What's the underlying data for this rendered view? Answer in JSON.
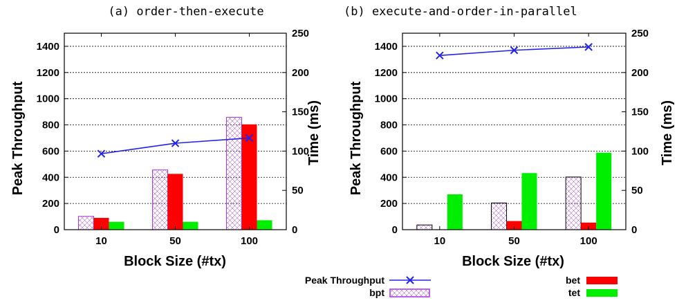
{
  "chart_data": [
    {
      "type": "bar",
      "title": "(a) order-then-execute",
      "xlabel": "Block Size (#tx)",
      "ylabel": "Peak Throughput",
      "y2label": "Time (ms)",
      "categories": [
        "10",
        "50",
        "100"
      ],
      "ylim": [
        0,
        1500
      ],
      "yticks": [
        "0",
        "200",
        "400",
        "600",
        "800",
        "1000",
        "1200",
        "1400"
      ],
      "y2lim": [
        0,
        250
      ],
      "y2ticks": [
        "0",
        "50",
        "100",
        "150",
        "200",
        "250"
      ],
      "grid": true,
      "series": [
        {
          "name": "bpt",
          "kind": "bar",
          "axis": "right",
          "values": [
            17,
            76,
            143
          ]
        },
        {
          "name": "bet",
          "kind": "bar",
          "axis": "right",
          "values": [
            15,
            71,
            134
          ]
        },
        {
          "name": "tet",
          "kind": "bar",
          "axis": "right",
          "values": [
            10,
            10,
            12
          ]
        },
        {
          "name": "Peak Throughput",
          "kind": "line",
          "axis": "left",
          "values": [
            580,
            660,
            700
          ]
        }
      ]
    },
    {
      "type": "bar",
      "title": "(b) execute-and-order-in-parallel",
      "xlabel": "Block Size (#tx)",
      "ylabel": "Peak Throughput",
      "y2label": "Time (ms)",
      "categories": [
        "10",
        "50",
        "100"
      ],
      "ylim": [
        0,
        1500
      ],
      "yticks": [
        "0",
        "200",
        "400",
        "600",
        "800",
        "1000",
        "1200",
        "1400"
      ],
      "y2lim": [
        0,
        250
      ],
      "y2ticks": [
        "0",
        "50",
        "100",
        "150",
        "200",
        "250"
      ],
      "grid": true,
      "series": [
        {
          "name": "bpt",
          "kind": "bar",
          "axis": "right",
          "values": [
            6,
            34,
            67
          ]
        },
        {
          "name": "bet",
          "kind": "bar",
          "axis": "right",
          "values": [
            0,
            11,
            9
          ]
        },
        {
          "name": "tet",
          "kind": "bar",
          "axis": "right",
          "values": [
            45,
            72,
            98
          ]
        },
        {
          "name": "Peak Throughput",
          "kind": "line",
          "axis": "left",
          "values": [
            1330,
            1370,
            1395
          ]
        }
      ]
    }
  ],
  "legend": {
    "items": [
      {
        "name": "Peak Throughput",
        "kind": "line",
        "color": "#2222ee"
      },
      {
        "name": "bpt",
        "kind": "bar",
        "color": "#aa33ee"
      },
      {
        "name": "bet",
        "kind": "bar",
        "color": "#ff0000"
      },
      {
        "name": "tet",
        "kind": "bar",
        "color": "#00ee00"
      }
    ]
  },
  "colors": {
    "bpt": "#aa33ee",
    "bet": "#ff0000",
    "tet": "#00ee00",
    "line": "#2222ee",
    "axis": "#000000"
  }
}
